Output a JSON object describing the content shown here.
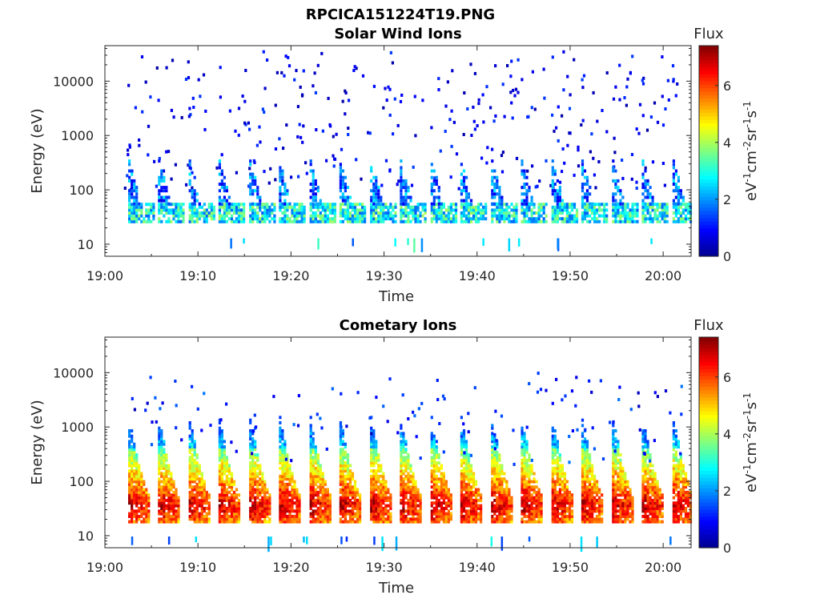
{
  "figure": {
    "title": "RPCICA151224T19.PNG"
  },
  "chart_data": [
    {
      "type": "heatmap",
      "title": "Solar Wind Ions",
      "xlabel": "Time",
      "ylabel": "Energy (eV)",
      "x_ticks": [
        "19:00",
        "19:10",
        "19:20",
        "19:30",
        "19:40",
        "19:50",
        "20:00"
      ],
      "x_range": [
        "19:00",
        "20:03"
      ],
      "y_scale": "log",
      "y_ticks": [
        "10",
        "100",
        "1000",
        "10000"
      ],
      "y_range": [
        6,
        45000
      ],
      "colorbar": {
        "label": "Flux",
        "unit_label": "eV-1cm-2sr-1s-1",
        "ticks": [
          "0",
          "2",
          "4",
          "6"
        ],
        "range": [
          0,
          7.4
        ],
        "colormap": "jet"
      },
      "sweep_start_minutes": [
        2.5,
        5.7,
        9.0,
        12.2,
        15.5,
        18.7,
        22.0,
        25.2,
        28.5,
        31.7,
        35.0,
        38.2,
        41.5,
        44.7,
        48.0,
        51.2,
        54.5,
        57.7,
        61.0
      ],
      "description": "Sparse low-flux counts at 100-30000 eV; moderate flux (2-4) concentrated near 30-50 eV with weak dispersed tails up to ~300 eV after each sweep start"
    },
    {
      "type": "heatmap",
      "title": "Cometary Ions",
      "xlabel": "Time",
      "ylabel": "Energy (eV)",
      "x_ticks": [
        "19:00",
        "19:10",
        "19:20",
        "19:30",
        "19:40",
        "19:50",
        "20:00"
      ],
      "x_range": [
        "19:00",
        "20:03"
      ],
      "y_scale": "log",
      "y_ticks": [
        "10",
        "100",
        "1000",
        "10000"
      ],
      "y_range": [
        6,
        45000
      ],
      "colorbar": {
        "label": "Flux",
        "unit_label": "eV-1cm-2sr-1s-1",
        "ticks": [
          "0",
          "2",
          "4",
          "6"
        ],
        "range": [
          0,
          7.4
        ],
        "colormap": "jet"
      },
      "sweep_start_minutes": [
        2.5,
        5.7,
        9.0,
        12.2,
        15.5,
        18.7,
        22.0,
        25.2,
        28.5,
        31.7,
        35.0,
        38.2,
        41.5,
        44.7,
        48.0,
        51.2,
        54.5,
        57.7,
        61.0
      ],
      "description": "Repeating energy-dispersed bursts: peak flux (~6-7) at 25-45 eV, falling to 2-4 around 100-1000 eV, with sparse counts up to ~10000 eV"
    }
  ],
  "colors": {
    "jet": [
      "#00008f",
      "#0000ff",
      "#0080ff",
      "#00ffff",
      "#80ff80",
      "#ffff00",
      "#ff8000",
      "#ff0000",
      "#800000"
    ],
    "axis": "#262626"
  }
}
